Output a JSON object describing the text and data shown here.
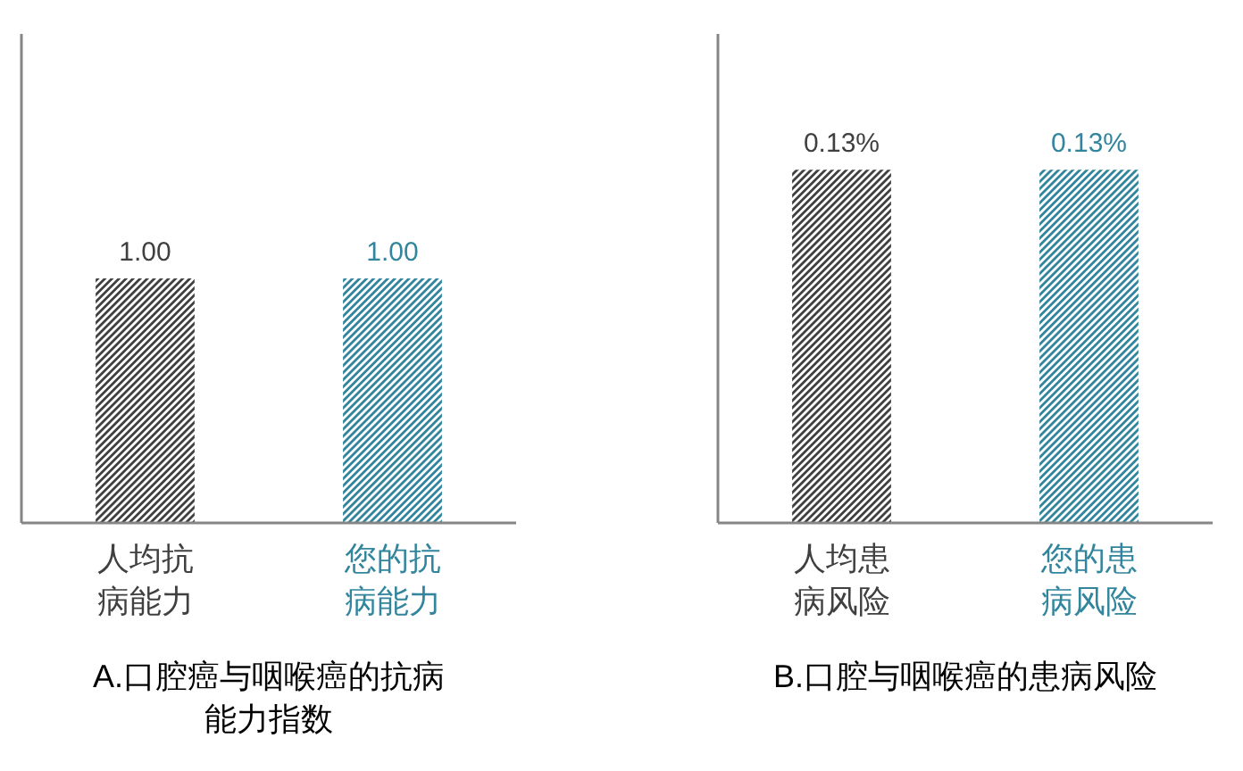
{
  "chart_data": [
    {
      "type": "bar",
      "title": "A.口腔癌与咽喉癌的抗病能力指数",
      "categories": [
        "人均抗病能力",
        "您的抗病能力"
      ],
      "values": [
        1.0,
        1.0
      ],
      "value_labels": [
        "1.00",
        "1.00"
      ],
      "colors": [
        "#404040",
        "#31859c"
      ],
      "ylim": [
        0,
        2
      ],
      "tick_labels": "x"
    },
    {
      "type": "bar",
      "title": "B.口腔与咽喉癌的患病风险",
      "categories": [
        "人均患病风险",
        "您的患病风险"
      ],
      "values": [
        0.13,
        0.13
      ],
      "value_labels": [
        "0.13%",
        "0.13%"
      ],
      "colors": [
        "#404040",
        "#31859c"
      ],
      "ylim": [
        0,
        0.18
      ],
      "tick_labels": "x"
    }
  ]
}
